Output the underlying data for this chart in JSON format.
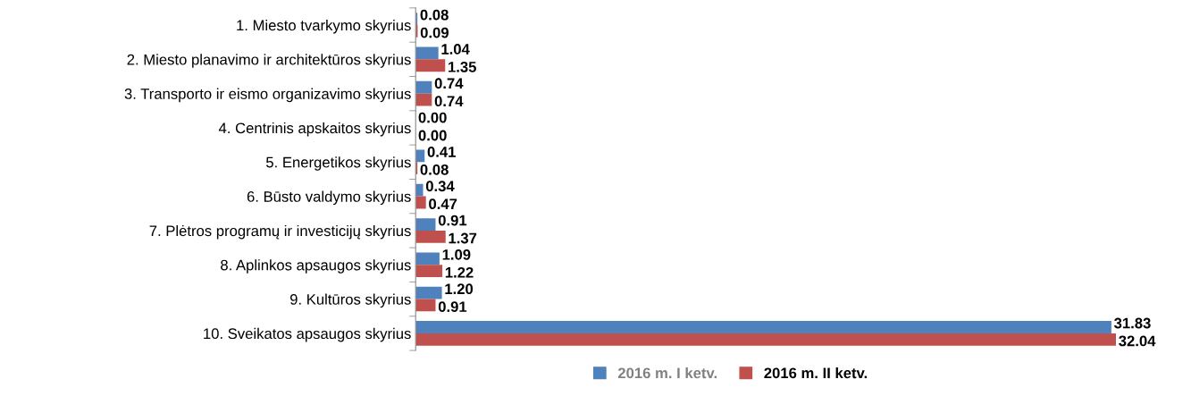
{
  "chart_data": {
    "type": "bar",
    "orientation": "horizontal",
    "categories": [
      "1. Miesto tvarkymo skyrius",
      "2. Miesto planavimo ir architektūros skyrius",
      "3. Transporto ir eismo organizavimo skyrius",
      "4. Centrinis apskaitos skyrius",
      "5. Energetikos skyrius",
      "6. Būsto valdymo skyrius",
      "7. Plėtros programų ir investicijų skyrius",
      "8. Aplinkos apsaugos skyrius",
      "9. Kultūros skyrius",
      "10. Sveikatos apsaugos skyrius"
    ],
    "series": [
      {
        "name": "2016 m. I ketv.",
        "color": "#4f81bd",
        "values": [
          0.08,
          1.04,
          0.74,
          0.0,
          0.41,
          0.34,
          0.91,
          1.09,
          1.2,
          31.83
        ],
        "value_labels": [
          "0.08",
          "1.04",
          "0.74",
          "0.00",
          "0.41",
          "0.34",
          "0.91",
          "1.09",
          "1.20",
          "31.83"
        ]
      },
      {
        "name": "2016 m. II ketv.",
        "color": "#c0504d",
        "values": [
          0.09,
          1.35,
          0.74,
          0.0,
          0.08,
          0.47,
          1.37,
          1.22,
          0.91,
          32.04
        ],
        "value_labels": [
          "0.09",
          "1.35",
          "0.74",
          "0.00",
          "0.08",
          "0.47",
          "1.37",
          "1.22",
          "0.91",
          "32.04"
        ]
      }
    ],
    "legend": "bottom",
    "grid": false
  }
}
